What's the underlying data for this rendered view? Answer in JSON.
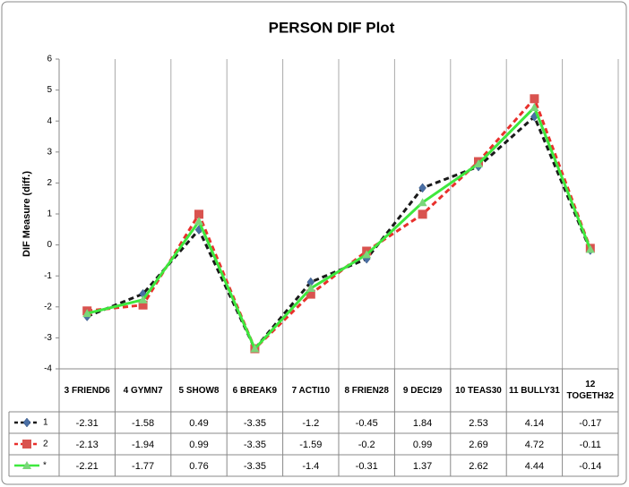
{
  "chart_data": {
    "type": "line",
    "title": "PERSON DIF Plot",
    "y_label": "DIF Measure (diff.)",
    "categories": [
      "3 FRIEND6",
      "4 GYMN7",
      "5 SHOW8",
      "6 BREAK9",
      "7 ACTI10",
      "8 FRIEN28",
      "9 DECI29",
      "10 TEAS30",
      "11 BULLY31",
      "12 TOGETH32"
    ],
    "series": [
      {
        "name": "1",
        "color": "#1a1a1a",
        "marker_color": "#4a6fa5",
        "marker": "diamond",
        "line_style": "dashed",
        "values": [
          -2.31,
          -1.58,
          0.49,
          -3.35,
          -1.2,
          -0.45,
          1.84,
          2.53,
          4.14,
          -0.17
        ]
      },
      {
        "name": "2",
        "color": "#e8302c",
        "marker_color": "#d9534f",
        "marker": "square",
        "line_style": "dashed",
        "values": [
          -2.13,
          -1.94,
          0.99,
          -3.35,
          -1.59,
          -0.2,
          0.99,
          2.69,
          4.72,
          -0.11
        ]
      },
      {
        "name": "*",
        "color": "#3ee83e",
        "marker_color": "#7ad67a",
        "marker": "triangle",
        "line_style": "solid",
        "values": [
          -2.21,
          -1.77,
          0.76,
          -3.35,
          -1.4,
          -0.31,
          1.37,
          2.62,
          4.44,
          -0.14
        ]
      }
    ],
    "ylim": [
      -4,
      6
    ],
    "yticks": [
      -4,
      -3,
      -2,
      -1,
      0,
      1,
      2,
      3,
      4,
      5,
      6
    ],
    "data_table": true
  }
}
